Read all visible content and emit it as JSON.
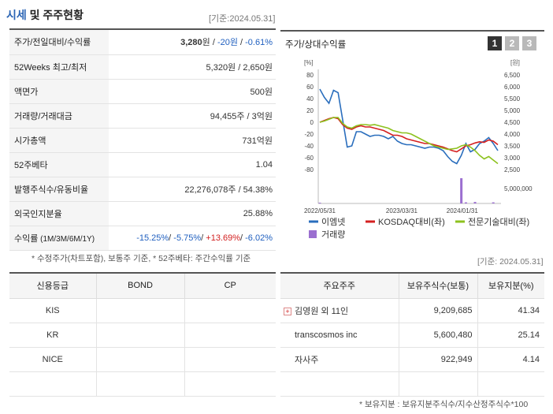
{
  "header": {
    "title_accent": "시세",
    "title_rest": " 및 주주현황",
    "base_date": "[기준:2024.05.31]"
  },
  "info_rows": [
    {
      "label": "주가/전일대비/수익률",
      "parts": [
        {
          "text": "3,280",
          "cls": "b"
        },
        {
          "text": "원 / ",
          "cls": ""
        },
        {
          "text": "-20원",
          "cls": "neg"
        },
        {
          "text": " / ",
          "cls": ""
        },
        {
          "text": "-0.61%",
          "cls": "neg"
        }
      ]
    },
    {
      "label": "52Weeks 최고/최저",
      "parts": [
        {
          "text": "5,320원 / 2,650원",
          "cls": ""
        }
      ]
    },
    {
      "label": "액면가",
      "parts": [
        {
          "text": "500원",
          "cls": ""
        }
      ]
    },
    {
      "label": "거래량/거래대금",
      "parts": [
        {
          "text": "94,455주 / 3억원",
          "cls": ""
        }
      ]
    },
    {
      "label": "시가총액",
      "parts": [
        {
          "text": "731억원",
          "cls": ""
        }
      ]
    },
    {
      "label": "52주베타",
      "parts": [
        {
          "text": "1.04",
          "cls": ""
        }
      ]
    },
    {
      "label": "발행주식수/유동비율",
      "parts": [
        {
          "text": "22,276,078주 / 54.38%",
          "cls": ""
        }
      ]
    },
    {
      "label": "외국인지분율",
      "parts": [
        {
          "text": "25.88%",
          "cls": ""
        }
      ]
    },
    {
      "label": "수익률",
      "label_small": " (1M/3M/6M/1Y)",
      "parts": [
        {
          "text": "-15.25%",
          "cls": "neg"
        },
        {
          "text": "/ ",
          "cls": ""
        },
        {
          "text": "-5.75%",
          "cls": "neg"
        },
        {
          "text": "/ ",
          "cls": ""
        },
        {
          "text": "+13.69%",
          "cls": "pos"
        },
        {
          "text": "/ ",
          "cls": ""
        },
        {
          "text": "-6.02%",
          "cls": "neg"
        }
      ]
    }
  ],
  "info_note": "* 수정주가(차트포함), 보통주 기준, * 52주베타: 주간수익률 기준",
  "chart": {
    "title": "주가/상대수익률",
    "tabs": [
      "1",
      "2",
      "3"
    ],
    "left_unit": "[%]",
    "right_unit": "[원]",
    "legend": [
      {
        "name": "이엠넷",
        "color": "#2a6ebd"
      },
      {
        "name": "KOSDAQ대비(좌)",
        "color": "#d42020"
      },
      {
        "name": "전문기술대비(좌)",
        "color": "#8dc21f"
      },
      {
        "name": "거래량",
        "color": "#9b6fd0"
      }
    ]
  },
  "chart_data": {
    "type": "line",
    "x_ticks": [
      "2022/05/31",
      "2023/03/31",
      "2024/01/31"
    ],
    "ylim_left": [
      -80,
      80
    ],
    "left_ticks": [
      "80",
      "60",
      "40",
      "20",
      "0",
      "-20",
      "-40",
      "-60",
      "-80"
    ],
    "ylim_right": [
      2500,
      6500
    ],
    "right_ticks": [
      "6,500",
      "6,000",
      "5,500",
      "5,000",
      "4,500",
      "4,000",
      "3,500",
      "3,000",
      "2,500"
    ],
    "volume_tick": "5,000,000",
    "volume_max": 7000000,
    "series": [
      {
        "name": "이엠넷",
        "axis": "right",
        "color": "#2a6ebd",
        "values": [
          5900,
          5550,
          5300,
          5850,
          5750,
          4600,
          3450,
          3500,
          4100,
          4100,
          4000,
          3900,
          3950,
          3950,
          3900,
          3800,
          3900,
          3700,
          3600,
          3550,
          3550,
          3500,
          3450,
          3400,
          3450,
          3450,
          3400,
          3300,
          3050,
          2850,
          2750,
          3100,
          3600,
          3250,
          3350,
          3600,
          3700,
          3850,
          3600,
          3300
        ]
      },
      {
        "name": "KOSDAQ대비(좌)",
        "axis": "left",
        "color": "#d42020",
        "values": [
          0,
          3,
          6,
          8,
          6,
          -4,
          -10,
          -12,
          -8,
          -6,
          -8,
          -8,
          -10,
          -12,
          -14,
          -18,
          -22,
          -22,
          -24,
          -28,
          -30,
          -32,
          -34,
          -36,
          -36,
          -38,
          -40,
          -42,
          -45,
          -48,
          -50,
          -45,
          -40,
          -38,
          -35,
          -33,
          -34,
          -30,
          -32,
          -38
        ]
      },
      {
        "name": "전문기술대비(좌)",
        "axis": "left",
        "color": "#8dc21f",
        "values": [
          0,
          2,
          5,
          8,
          8,
          -2,
          -8,
          -10,
          -6,
          -4,
          -4,
          -5,
          -4,
          -6,
          -8,
          -10,
          -14,
          -16,
          -18,
          -18,
          -20,
          -24,
          -28,
          -32,
          -36,
          -40,
          -42,
          -44,
          -46,
          -45,
          -44,
          -40,
          -38,
          -42,
          -48,
          -56,
          -62,
          -58,
          -64,
          -70
        ]
      },
      {
        "name": "거래량",
        "axis": "volume",
        "color": "#9b6fd0",
        "values": [
          200000,
          0,
          0,
          0,
          0,
          0,
          0,
          0,
          0,
          0,
          0,
          0,
          0,
          0,
          0,
          0,
          0,
          0,
          0,
          0,
          0,
          0,
          0,
          0,
          0,
          0,
          0,
          0,
          0,
          0,
          0,
          6800000,
          300000,
          0,
          400000,
          0,
          0,
          0,
          300000,
          0
        ]
      }
    ]
  },
  "rating": {
    "headers": [
      "신용등급",
      "BOND",
      "CP"
    ],
    "rows": [
      [
        "KIS",
        "",
        ""
      ],
      [
        "KR",
        "",
        ""
      ],
      [
        "NICE",
        "",
        ""
      ],
      [
        "",
        "",
        ""
      ]
    ]
  },
  "holders": {
    "base_date": "[기준: 2024.05.31]",
    "headers": [
      "주요주주",
      "보유주식수(보통)",
      "보유지분(%)"
    ],
    "rows": [
      {
        "name": "김영원 외 11인",
        "expand": true,
        "shares": "9,209,685",
        "pct": "41.34"
      },
      {
        "name": "transcosmos inc",
        "expand": false,
        "shares": "5,600,480",
        "pct": "25.14"
      },
      {
        "name": "자사주",
        "expand": false,
        "shares": "922,949",
        "pct": "4.14"
      },
      {
        "name": "",
        "expand": false,
        "shares": "",
        "pct": ""
      }
    ],
    "expand_symbol": "+",
    "note": "* 보유지분 : 보유지분주식수/지수산정주식수*100"
  }
}
